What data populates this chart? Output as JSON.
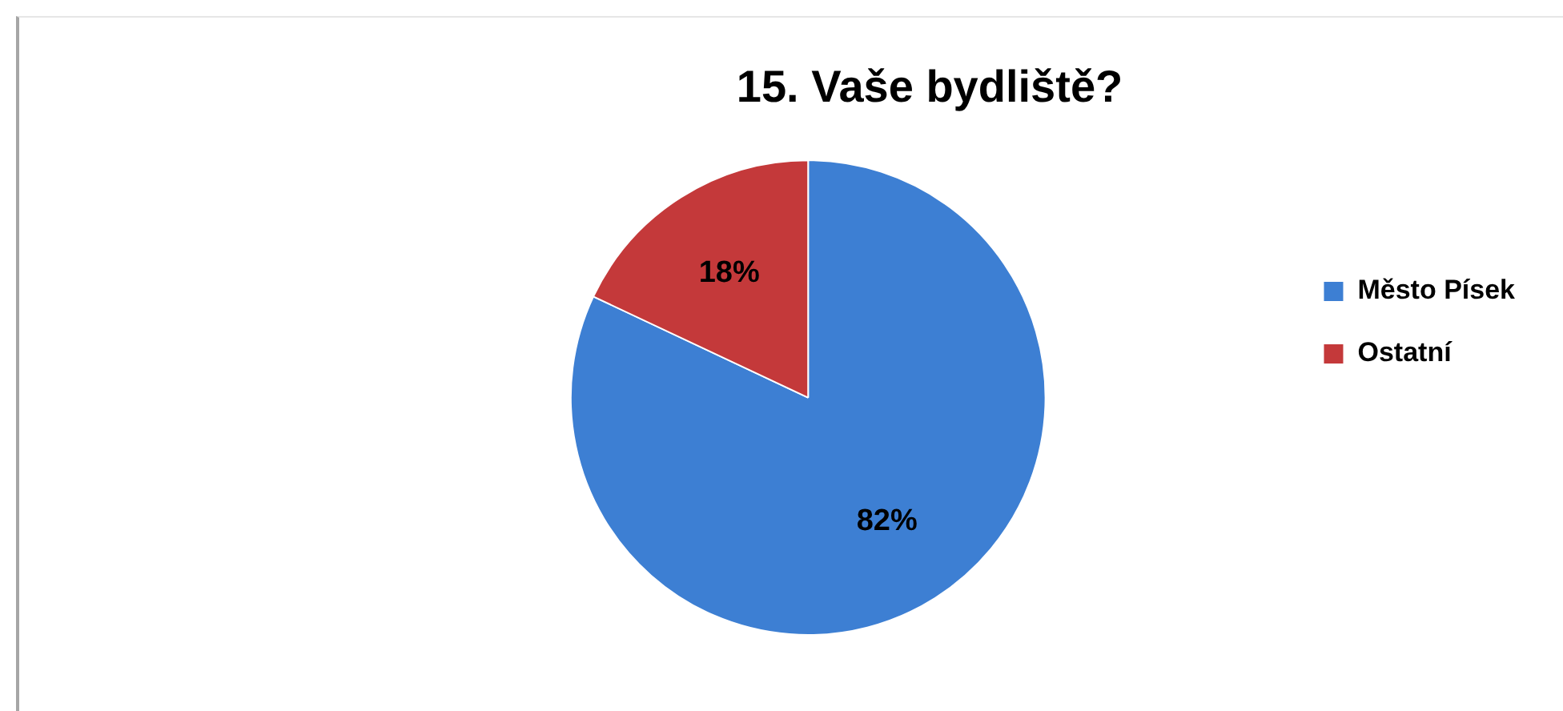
{
  "chart_data": {
    "type": "pie",
    "title": "15. Vaše bydliště?",
    "categories": [
      "Město Písek",
      "Ostatní"
    ],
    "values": [
      82,
      18
    ],
    "colors": [
      "#3d7fd3",
      "#c4393a"
    ],
    "legend": "right",
    "value_labels": [
      "82%",
      "18%"
    ]
  }
}
